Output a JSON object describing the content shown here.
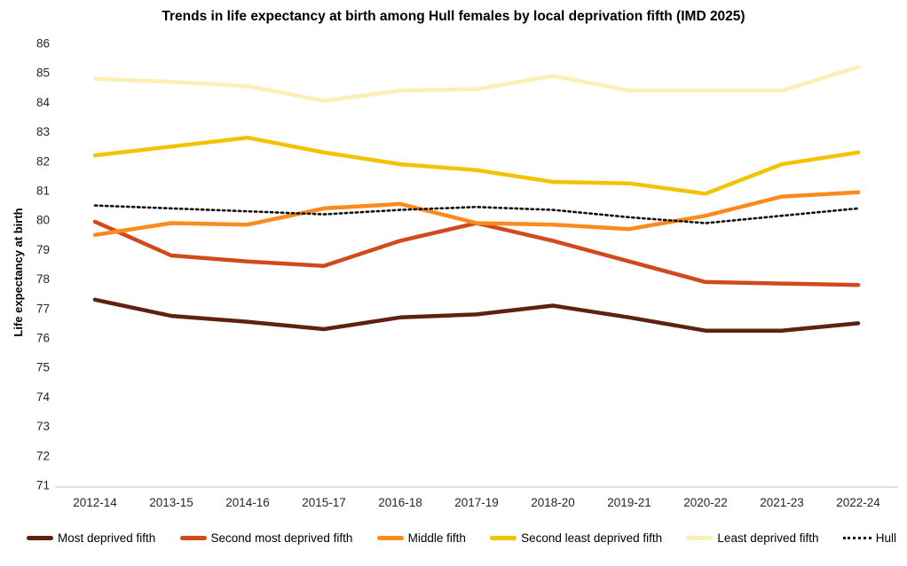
{
  "chart_data": {
    "type": "line",
    "title": "Trends in life expectancy at birth among Hull females by local deprivation fifth (IMD 2025)",
    "ylabel": "Life expectancy at birth",
    "xlabel": "",
    "ylim": [
      71,
      86
    ],
    "ytick_step": 1,
    "grid": false,
    "legend_position": "bottom",
    "axis_line_color": "#D9D9D9",
    "tick_label_color": "#262626",
    "categories": [
      "2012-14",
      "2013-15",
      "2014-16",
      "2015-17",
      "2016-18",
      "2017-19",
      "2018-20",
      "2019-21",
      "2020-22",
      "2021-23",
      "2022-24"
    ],
    "series": [
      {
        "name": "Most deprived fifth",
        "color": "#5F2110",
        "style": "solid",
        "values": [
          77.3,
          76.75,
          76.55,
          76.3,
          76.7,
          76.8,
          77.1,
          76.7,
          76.25,
          76.25,
          76.5
        ]
      },
      {
        "name": "Second most deprived fifth",
        "color": "#D2491C",
        "style": "solid",
        "values": [
          79.95,
          78.8,
          78.6,
          78.45,
          79.3,
          79.9,
          79.3,
          78.6,
          77.9,
          77.85,
          77.8
        ]
      },
      {
        "name": "Middle fifth",
        "color": "#FC8A1D",
        "style": "solid",
        "values": [
          79.5,
          79.9,
          79.85,
          80.4,
          80.55,
          79.9,
          79.85,
          79.7,
          80.15,
          80.8,
          80.95
        ]
      },
      {
        "name": "Second least deprived fifth",
        "color": "#F2C300",
        "style": "solid",
        "values": [
          82.2,
          82.5,
          82.8,
          82.3,
          81.9,
          81.7,
          81.3,
          81.25,
          80.9,
          81.9,
          82.3
        ]
      },
      {
        "name": "Least deprived fifth",
        "color": "#FAF0B5",
        "style": "solid",
        "values": [
          84.8,
          84.7,
          84.55,
          84.05,
          84.4,
          84.45,
          84.9,
          84.4,
          84.4,
          84.4,
          85.2
        ]
      },
      {
        "name": "Hull",
        "color": "#111111",
        "style": "dotted",
        "values": [
          80.5,
          80.4,
          80.3,
          80.2,
          80.35,
          80.45,
          80.35,
          80.1,
          79.9,
          80.15,
          80.4
        ]
      }
    ]
  }
}
